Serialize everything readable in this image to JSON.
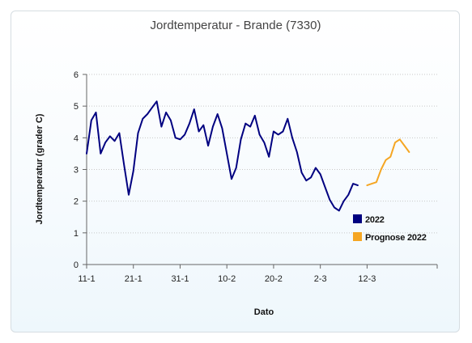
{
  "chart_data": {
    "type": "line",
    "title": "Jordtemperatur - Brande (7330)",
    "xlabel": "Dato",
    "ylabel": "Jordtemperatur (grader C)",
    "ylim": [
      0,
      6
    ],
    "yticks": [
      0,
      1,
      2,
      3,
      4,
      5,
      6
    ],
    "xlim": [
      "11-1",
      "27-3"
    ],
    "xticks": [
      "11-1",
      "21-1",
      "31-1",
      "10-2",
      "20-2",
      "2-3",
      "12-3"
    ],
    "grid": true,
    "legend_position": "bottom-right",
    "colors": {
      "2022": "#000080",
      "Prognose 2022": "#f5a623",
      "grid": "#c8c8c8",
      "axis": "#666666"
    },
    "series": [
      {
        "name": "2022",
        "x": [
          "11-1",
          "12-1",
          "13-1",
          "14-1",
          "15-1",
          "16-1",
          "17-1",
          "18-1",
          "19-1",
          "20-1",
          "21-1",
          "22-1",
          "23-1",
          "24-1",
          "25-1",
          "26-1",
          "27-1",
          "28-1",
          "29-1",
          "30-1",
          "31-1",
          "1-2",
          "2-2",
          "3-2",
          "4-2",
          "5-2",
          "6-2",
          "7-2",
          "8-2",
          "9-2",
          "10-2",
          "11-2",
          "12-2",
          "13-2",
          "14-2",
          "15-2",
          "16-2",
          "17-2",
          "18-2",
          "19-2",
          "20-2",
          "21-2",
          "22-2",
          "23-2",
          "24-2",
          "25-2",
          "26-2",
          "27-2",
          "28-2",
          "1-3",
          "2-3",
          "3-3",
          "4-3",
          "5-3",
          "6-3",
          "7-3",
          "8-3",
          "9-3",
          "10-3",
          "11-3",
          "12-3"
        ],
        "values": [
          3.5,
          4.55,
          4.8,
          3.5,
          3.85,
          4.05,
          3.9,
          4.15,
          3.15,
          2.2,
          2.95,
          4.15,
          4.6,
          4.75,
          4.95,
          5.15,
          4.35,
          4.8,
          4.55,
          4.0,
          3.95,
          4.1,
          4.45,
          4.9,
          4.2,
          4.4,
          3.75,
          4.35,
          4.75,
          4.3,
          3.5,
          2.7,
          3.05,
          3.95,
          4.45,
          4.35,
          4.7,
          4.1,
          3.85,
          3.4,
          4.2,
          4.1,
          4.2,
          4.6,
          4.0,
          3.55,
          2.9,
          2.65,
          2.75,
          3.05,
          2.85,
          2.45,
          2.05,
          1.8,
          1.7,
          2.0,
          2.2,
          2.55,
          2.5,
          null,
          null
        ]
      },
      {
        "name": "Prognose 2022",
        "x": [
          "12-3",
          "13-3",
          "14-3",
          "15-3",
          "16-3",
          "17-3",
          "18-3",
          "19-3",
          "20-3",
          "21-3",
          "22-3"
        ],
        "values": [
          2.5,
          2.55,
          2.6,
          3.0,
          3.3,
          3.4,
          3.85,
          3.95,
          3.75,
          3.55,
          null
        ]
      }
    ]
  }
}
